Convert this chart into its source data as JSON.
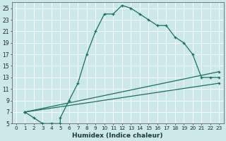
{
  "xlabel": "Humidex (Indice chaleur)",
  "bg_color": "#cce8e8",
  "grid_color": "#ffffff",
  "line_color": "#1a7060",
  "xlim": [
    -0.5,
    23.5
  ],
  "ylim": [
    5,
    26
  ],
  "yticks": [
    5,
    7,
    9,
    11,
    13,
    15,
    17,
    19,
    21,
    23,
    25
  ],
  "xticks": [
    0,
    1,
    2,
    3,
    4,
    5,
    6,
    7,
    8,
    9,
    10,
    11,
    12,
    13,
    14,
    15,
    16,
    17,
    18,
    19,
    20,
    21,
    22,
    23
  ],
  "line1_x": [
    1,
    2,
    3,
    4,
    5,
    5,
    6,
    7,
    8,
    9,
    10,
    11,
    12,
    13,
    14,
    15,
    16,
    17,
    18,
    19,
    20,
    21,
    22,
    23
  ],
  "line1_y": [
    7,
    6,
    5,
    5,
    5,
    6,
    9,
    12,
    17,
    21,
    24,
    24,
    25.5,
    25,
    24,
    23,
    22,
    22,
    20,
    19,
    17,
    13,
    13,
    13
  ],
  "line2_x": [
    1,
    23
  ],
  "line2_y": [
    7,
    14
  ],
  "line3_x": [
    1,
    23
  ],
  "line3_y": [
    7,
    12
  ]
}
